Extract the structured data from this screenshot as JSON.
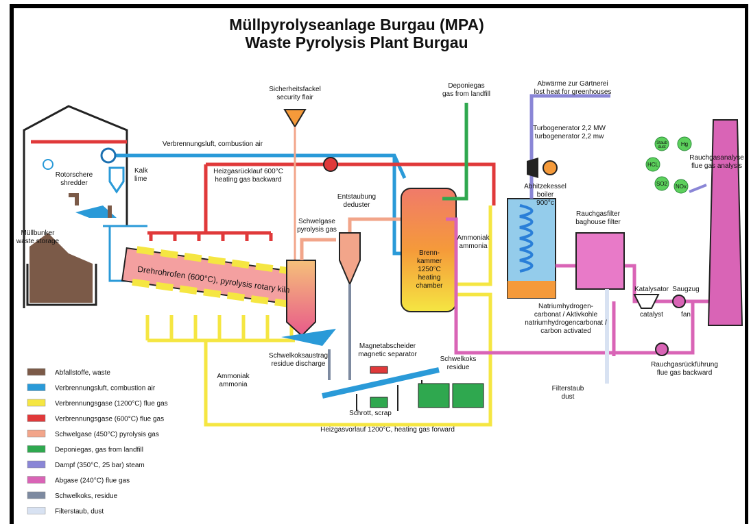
{
  "title": [
    "Müllpyrolyseanlage Burgau (MPA)",
    "Waste Pyrolysis Plant Burgau"
  ],
  "labels": [
    {
      "lines": [
        "Sicherheitsfackel",
        "security flair"
      ]
    },
    {
      "lines": [
        "Deponiegas",
        "gas from landfill"
      ]
    },
    {
      "lines": [
        "Abwärme zur Gärtnerei",
        "lost heat for greenhouses"
      ]
    },
    {
      "lines": [
        "Turbogenerator 2,2 MW",
        "turbogenerator 2,2 mw"
      ]
    },
    {
      "lines": [
        "Verbrennungsluft, combustion air"
      ]
    },
    {
      "lines": [
        "Rotorschere",
        "shredder"
      ]
    },
    {
      "lines": [
        "Kalk",
        "lime"
      ]
    },
    {
      "lines": [
        "Heizgasrücklauf 600°C",
        "heating gas backward"
      ]
    },
    {
      "lines": [
        "Entstaubung",
        "deduster"
      ]
    },
    {
      "lines": [
        "Abhitzekessel",
        "boiler",
        "900°c"
      ]
    },
    {
      "lines": [
        "Rauchgasfilter",
        "baghouse filter"
      ]
    },
    {
      "lines": [
        "Müllbunker",
        "waste storage"
      ]
    },
    {
      "lines": [
        "Schwelgase",
        "pyrolysis gas"
      ]
    },
    {
      "lines": [
        "Brenn-",
        "kammer",
        "1250°C",
        "heating",
        "chamber"
      ]
    },
    {
      "lines": [
        "Ammoniak",
        "ammonia"
      ]
    },
    {
      "lines": [
        "Natriumhydrogen-",
        "carbonat / Aktivkohle",
        "natriumhydrogencarbonat /",
        "carbon   activated"
      ]
    },
    {
      "lines": [
        "Katalysator"
      ]
    },
    {
      "lines": [
        "catalyst"
      ]
    },
    {
      "lines": [
        "Saugzug"
      ]
    },
    {
      "lines": [
        "fan"
      ]
    },
    {
      "lines": [
        "Rauchgasanalyse",
        "flue gas analysis"
      ]
    },
    {
      "lines": [
        "Schwelkoksaustrag",
        "residue discharge"
      ]
    },
    {
      "lines": [
        "Magnetabscheider",
        "magnetic separator"
      ]
    },
    {
      "lines": [
        "Schwelkoks",
        "residue"
      ]
    },
    {
      "lines": [
        "Ammoniak",
        "ammonia"
      ]
    },
    {
      "lines": [
        "Rauchgasrückführung",
        "flue gas backward"
      ]
    },
    {
      "lines": [
        "Filterstaub",
        "dust"
      ]
    },
    {
      "lines": [
        "Schrott, scrap"
      ]
    },
    {
      "lines": [
        "Heizgasvorlauf 1200°C, heating gas forward"
      ]
    },
    {
      "lines": [
        "Drehrohrofen (600°C), pyrolysis rotary kiln"
      ]
    }
  ],
  "analysis": [
    {
      "lines": [
        "Staub",
        "dust"
      ]
    },
    {
      "lines": [
        "Hg"
      ]
    },
    {
      "lines": [
        "HCL"
      ]
    },
    {
      "lines": [
        "SO2"
      ]
    },
    {
      "lines": [
        "NOx"
      ]
    }
  ],
  "legend": [
    {
      "label": "Abfallstoffe, waste",
      "color": "#7b5a48"
    },
    {
      "label": "Verbrennungsluft, combustion air",
      "color": "#2a9ad8"
    },
    {
      "label": "Verbrennungsgase (1200°C) flue gas",
      "color": "#f5e642"
    },
    {
      "label": "Verbrennungsgase (600°C) flue gas",
      "color": "#e0393a"
    },
    {
      "label": "Schwelgase (450°C) pyrolysis gas",
      "color": "#f2a58a"
    },
    {
      "label": "Deponiegas, gas from landfill",
      "color": "#2fa84f"
    },
    {
      "label": "Dampf (350°C, 25 bar) steam",
      "color": "#8a86d6"
    },
    {
      "label": "Abgase (240°C) flue gas",
      "color": "#d964b6"
    },
    {
      "label": "Schwelkoks, residue",
      "color": "#7d8aa0"
    },
    {
      "label": "Filterstaub, dust",
      "color": "#d8e2f2"
    }
  ]
}
